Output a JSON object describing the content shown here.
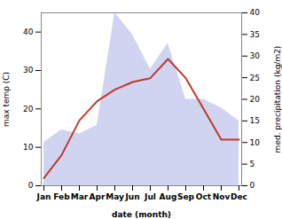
{
  "chart_data": {
    "type": "line",
    "categories": [
      "Jan",
      "Feb",
      "Mar",
      "Apr",
      "May",
      "Jun",
      "Jul",
      "Aug",
      "Sep",
      "Oct",
      "Nov",
      "Dec"
    ],
    "series": [
      {
        "type": "area",
        "axis": "y2",
        "color": "#b0b8e8",
        "values": [
          10,
          13,
          12,
          14,
          40,
          35,
          27,
          33,
          20,
          20,
          18,
          15
        ]
      },
      {
        "type": "line",
        "color": "#c0392b",
        "values": [
          2,
          8,
          17,
          22,
          25,
          27,
          28,
          33,
          28,
          20,
          12,
          12
        ]
      }
    ],
    "xlabel": "date (month)",
    "ylabel": "max temp (C)",
    "y2label": "med. precipitation (kg/m2)",
    "ylim": [
      0,
      45
    ],
    "yticks": [
      0,
      10,
      20,
      30,
      40
    ],
    "y2lim": [
      0,
      40
    ],
    "y2ticks": [
      0,
      5,
      10,
      15,
      20,
      25,
      30,
      35,
      40
    ],
    "grid": false
  }
}
